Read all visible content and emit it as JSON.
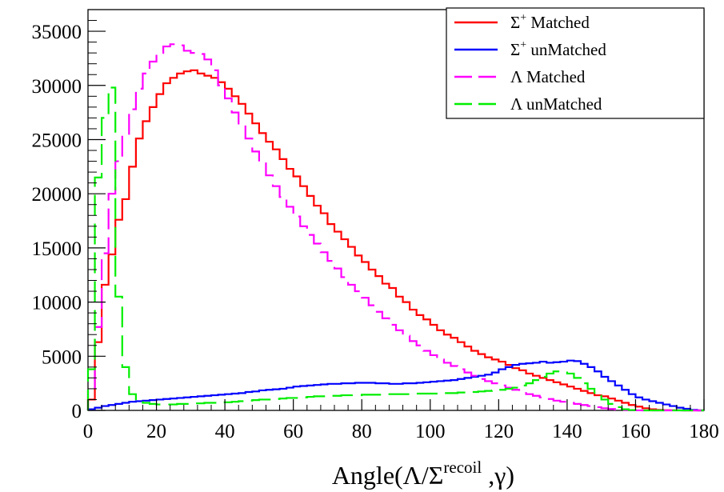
{
  "chart_data": {
    "type": "line",
    "style": "step-histogram",
    "title": "",
    "xlabel": {
      "main": "Angle(Λ/Σ",
      "sup": "recoil",
      "tail": " ,γ)"
    },
    "ylabel": "",
    "xlim": [
      0,
      180
    ],
    "ylim": [
      0,
      37000
    ],
    "bin_width": 2,
    "x_ticks": [
      0,
      20,
      40,
      60,
      80,
      100,
      120,
      140,
      160,
      180
    ],
    "y_ticks": [
      0,
      5000,
      10000,
      15000,
      20000,
      25000,
      30000,
      35000
    ],
    "x_tick_labels": [
      "0",
      "20",
      "40",
      "60",
      "80",
      "100",
      "120",
      "140",
      "160",
      "180"
    ],
    "y_tick_labels": [
      "0",
      "5000",
      "10000",
      "15000",
      "20000",
      "25000",
      "30000",
      "35000"
    ],
    "grid": false,
    "legend_position": "top-right",
    "series": [
      {
        "name": "Σ⁺ Matched",
        "legend": {
          "base": "Σ",
          "sup": "+",
          "rest": " Matched"
        },
        "color": "#ff0000",
        "dash": "none",
        "values": [
          1000,
          6300,
          11600,
          14400,
          17600,
          19500,
          22500,
          25100,
          26700,
          28000,
          29200,
          30200,
          30700,
          31100,
          31300,
          31400,
          31100,
          30900,
          30700,
          30300,
          29700,
          29000,
          28300,
          27400,
          26500,
          25600,
          24800,
          24100,
          23200,
          22300,
          21600,
          20700,
          19800,
          18900,
          18200,
          17200,
          16500,
          15800,
          15100,
          14300,
          13700,
          13000,
          12400,
          11700,
          11300,
          10500,
          10000,
          9300,
          8800,
          8400,
          7900,
          7400,
          7000,
          6700,
          6300,
          5900,
          5500,
          5200,
          4900,
          4700,
          4500,
          4200,
          3900,
          3700,
          3400,
          3200,
          3000,
          2800,
          2600,
          2400,
          2200,
          2000,
          1800,
          1600,
          1400,
          1300,
          1100,
          900,
          700,
          500,
          350,
          200,
          100,
          50,
          20,
          10,
          5,
          2,
          1,
          0
        ]
      },
      {
        "name": "Σ⁺ unMatched",
        "legend": {
          "base": "Σ",
          "sup": "+",
          "rest": " unMatched"
        },
        "color": "#0000ff",
        "dash": "none",
        "values": [
          100,
          250,
          400,
          500,
          600,
          700,
          800,
          850,
          900,
          950,
          1000,
          1050,
          1100,
          1150,
          1200,
          1250,
          1300,
          1350,
          1400,
          1450,
          1500,
          1550,
          1600,
          1700,
          1750,
          1850,
          1900,
          1950,
          2000,
          2100,
          2200,
          2250,
          2300,
          2350,
          2400,
          2450,
          2450,
          2500,
          2500,
          2550,
          2550,
          2550,
          2500,
          2500,
          2450,
          2450,
          2500,
          2500,
          2550,
          2600,
          2650,
          2700,
          2750,
          2800,
          2900,
          3000,
          3100,
          3200,
          3300,
          3500,
          3800,
          4000,
          4200,
          4300,
          4350,
          4400,
          4500,
          4400,
          4450,
          4500,
          4600,
          4550,
          4300,
          4000,
          3600,
          3100,
          2700,
          2300,
          1900,
          1500,
          1200,
          1000,
          850,
          700,
          550,
          400,
          250,
          150,
          50,
          0
        ]
      },
      {
        "name": "Λ Matched",
        "legend": {
          "base": "Λ",
          "sup": "",
          "rest": " Matched"
        },
        "color": "#ff00ff",
        "dash": "26,10",
        "values": [
          2000,
          7700,
          14500,
          20000,
          23000,
          25400,
          27800,
          29700,
          31100,
          32200,
          33000,
          33600,
          33800,
          33700,
          33200,
          33000,
          32900,
          32400,
          31400,
          30000,
          28800,
          27500,
          26300,
          25100,
          23900,
          22800,
          21700,
          20700,
          19700,
          18800,
          17900,
          17000,
          16200,
          15400,
          14600,
          13800,
          13100,
          12300,
          11600,
          11000,
          10400,
          9700,
          9100,
          8500,
          7900,
          7400,
          6900,
          6400,
          6000,
          5500,
          5100,
          4700,
          4400,
          4100,
          3800,
          3500,
          3200,
          2900,
          2700,
          2500,
          2300,
          2100,
          1900,
          1700,
          1500,
          1350,
          1200,
          1050,
          900,
          800,
          700,
          600,
          500,
          400,
          300,
          200,
          130,
          70,
          30,
          10,
          5,
          2,
          1,
          0,
          0,
          0,
          0,
          0,
          0,
          0
        ]
      },
      {
        "name": "Λ unMatched",
        "legend": {
          "base": "Λ",
          "sup": "",
          "rest": " unMatched"
        },
        "color": "#00ee00",
        "dash": "26,10",
        "values": [
          3800,
          21500,
          27000,
          29800,
          10500,
          4000,
          1500,
          900,
          700,
          600,
          550,
          550,
          550,
          600,
          600,
          650,
          650,
          700,
          700,
          750,
          750,
          800,
          850,
          900,
          950,
          1000,
          1000,
          1050,
          1100,
          1150,
          1150,
          1200,
          1250,
          1300,
          1300,
          1350,
          1350,
          1400,
          1400,
          1400,
          1450,
          1450,
          1450,
          1500,
          1500,
          1500,
          1500,
          1550,
          1550,
          1550,
          1550,
          1550,
          1600,
          1600,
          1650,
          1650,
          1700,
          1750,
          1800,
          1850,
          1900,
          2000,
          2100,
          2300,
          2500,
          2800,
          3100,
          3400,
          3600,
          3600,
          3400,
          3000,
          2500,
          2000,
          1500,
          1000,
          600,
          300,
          100,
          30,
          10,
          0,
          0,
          0,
          0,
          0,
          0,
          0,
          0,
          0
        ]
      }
    ]
  }
}
